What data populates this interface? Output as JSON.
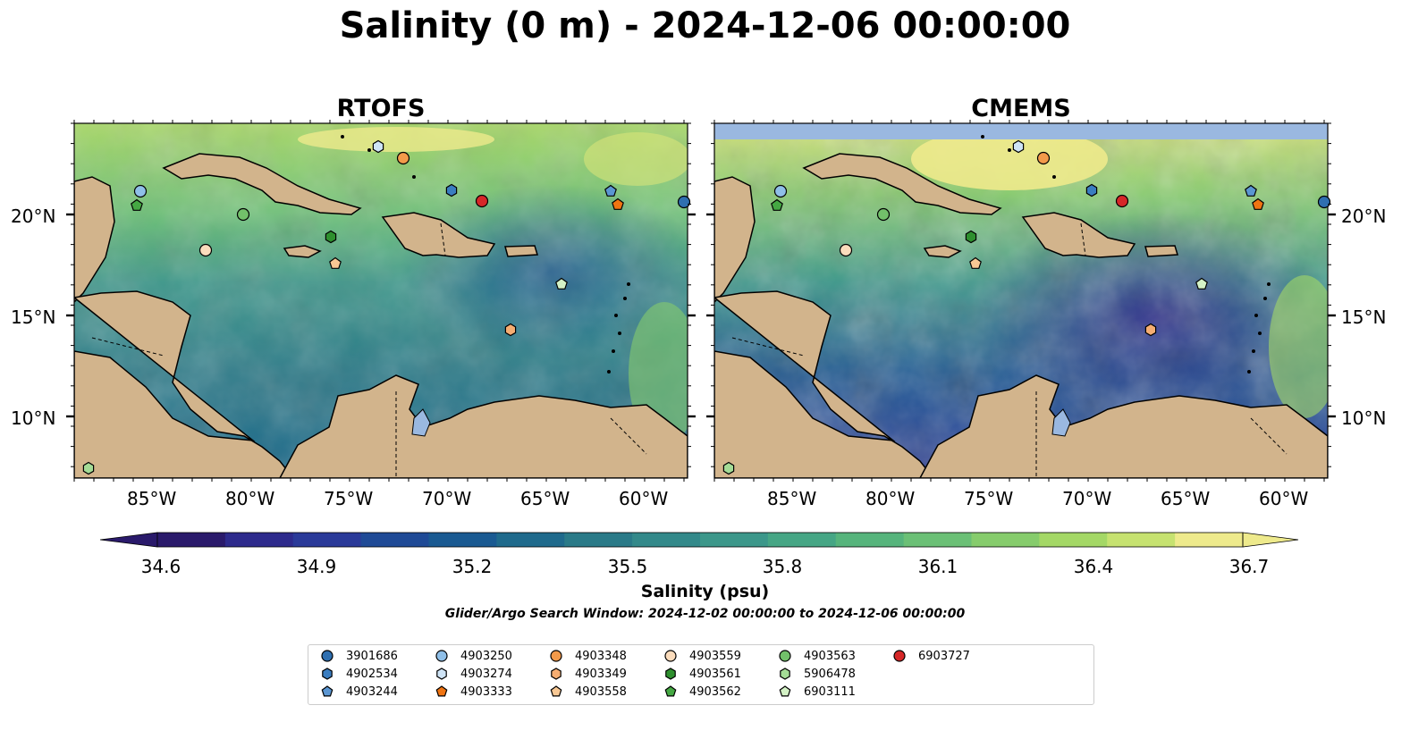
{
  "title": "Salinity (0 m) - 2024-12-06 00:00:00",
  "panels": [
    {
      "title": "RTOFS"
    },
    {
      "title": "CMEMS"
    }
  ],
  "lat_labels": [
    "20°N",
    "15°N",
    "10°N"
  ],
  "lon_labels": [
    "85°W",
    "80°W",
    "75°W",
    "70°W",
    "65°W",
    "60°W"
  ],
  "colorbar": {
    "label": "Salinity (psu)",
    "ticks": [
      "34.6",
      "34.9",
      "35.2",
      "35.5",
      "35.8",
      "36.1",
      "36.4",
      "36.7"
    ],
    "colormap": "haline",
    "extend": "both",
    "colors": [
      "#2a1a6b",
      "#2d2a8c",
      "#2a3a99",
      "#1f4a96",
      "#1a5a92",
      "#1f6a8c",
      "#2a7a88",
      "#33898a",
      "#3c978a",
      "#46a685",
      "#56b47c",
      "#6bc076",
      "#86cc6c",
      "#a4d866",
      "#c6e270",
      "#eeea8c"
    ]
  },
  "search_window": "Glider/Argo Search Window: 2024-12-02 00:00:00 to 2024-12-06 00:00:00",
  "colors": {
    "land": "#d2b48c",
    "lake": "#9ab8e0",
    "ocean_pacific": "#2a1a6b"
  },
  "legend": [
    {
      "id": "3901686",
      "marker": "circle",
      "color": "#2f6fb0"
    },
    {
      "id": "4902534",
      "marker": "hexagon",
      "color": "#3a7dc0"
    },
    {
      "id": "4903244",
      "marker": "pentagon",
      "color": "#5b96d2"
    },
    {
      "id": "4903250",
      "marker": "circle",
      "color": "#8fbfe8"
    },
    {
      "id": "4903274",
      "marker": "hexagon",
      "color": "#cfe4f6"
    },
    {
      "id": "4903333",
      "marker": "pentagon",
      "color": "#f07412"
    },
    {
      "id": "4903348",
      "marker": "circle",
      "color": "#f39a4a"
    },
    {
      "id": "4903349",
      "marker": "hexagon",
      "color": "#f5ad72"
    },
    {
      "id": "4903558",
      "marker": "pentagon",
      "color": "#f8c894"
    },
    {
      "id": "4903559",
      "marker": "circle",
      "color": "#fbdcbc"
    },
    {
      "id": "4903561",
      "marker": "hexagon",
      "color": "#2e8f2e"
    },
    {
      "id": "4903562",
      "marker": "pentagon",
      "color": "#45a843"
    },
    {
      "id": "4903563",
      "marker": "circle",
      "color": "#72c06a"
    },
    {
      "id": "5906478",
      "marker": "hexagon",
      "color": "#a4dc96"
    },
    {
      "id": "6903111",
      "marker": "pentagon",
      "color": "#d4f2c6"
    },
    {
      "id": "6903727",
      "marker": "circle",
      "color": "#d62728"
    }
  ]
}
